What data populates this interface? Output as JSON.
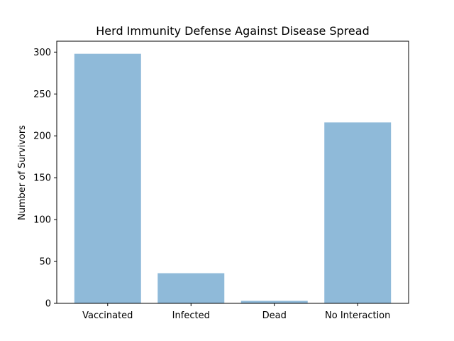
{
  "chart_data": {
    "type": "bar",
    "title": "Herd Immunity Defense Against Disease Spread",
    "xlabel": "",
    "ylabel": "Number of Survivors",
    "categories": [
      "Vaccinated",
      "Infected",
      "Dead",
      "No Interaction"
    ],
    "values": [
      298,
      36,
      3,
      216
    ],
    "ylim": [
      0,
      313
    ],
    "yticks": [
      0,
      50,
      100,
      150,
      200,
      250,
      300
    ],
    "bar_color": "#8fbad9",
    "grid": false,
    "legend": "none"
  }
}
